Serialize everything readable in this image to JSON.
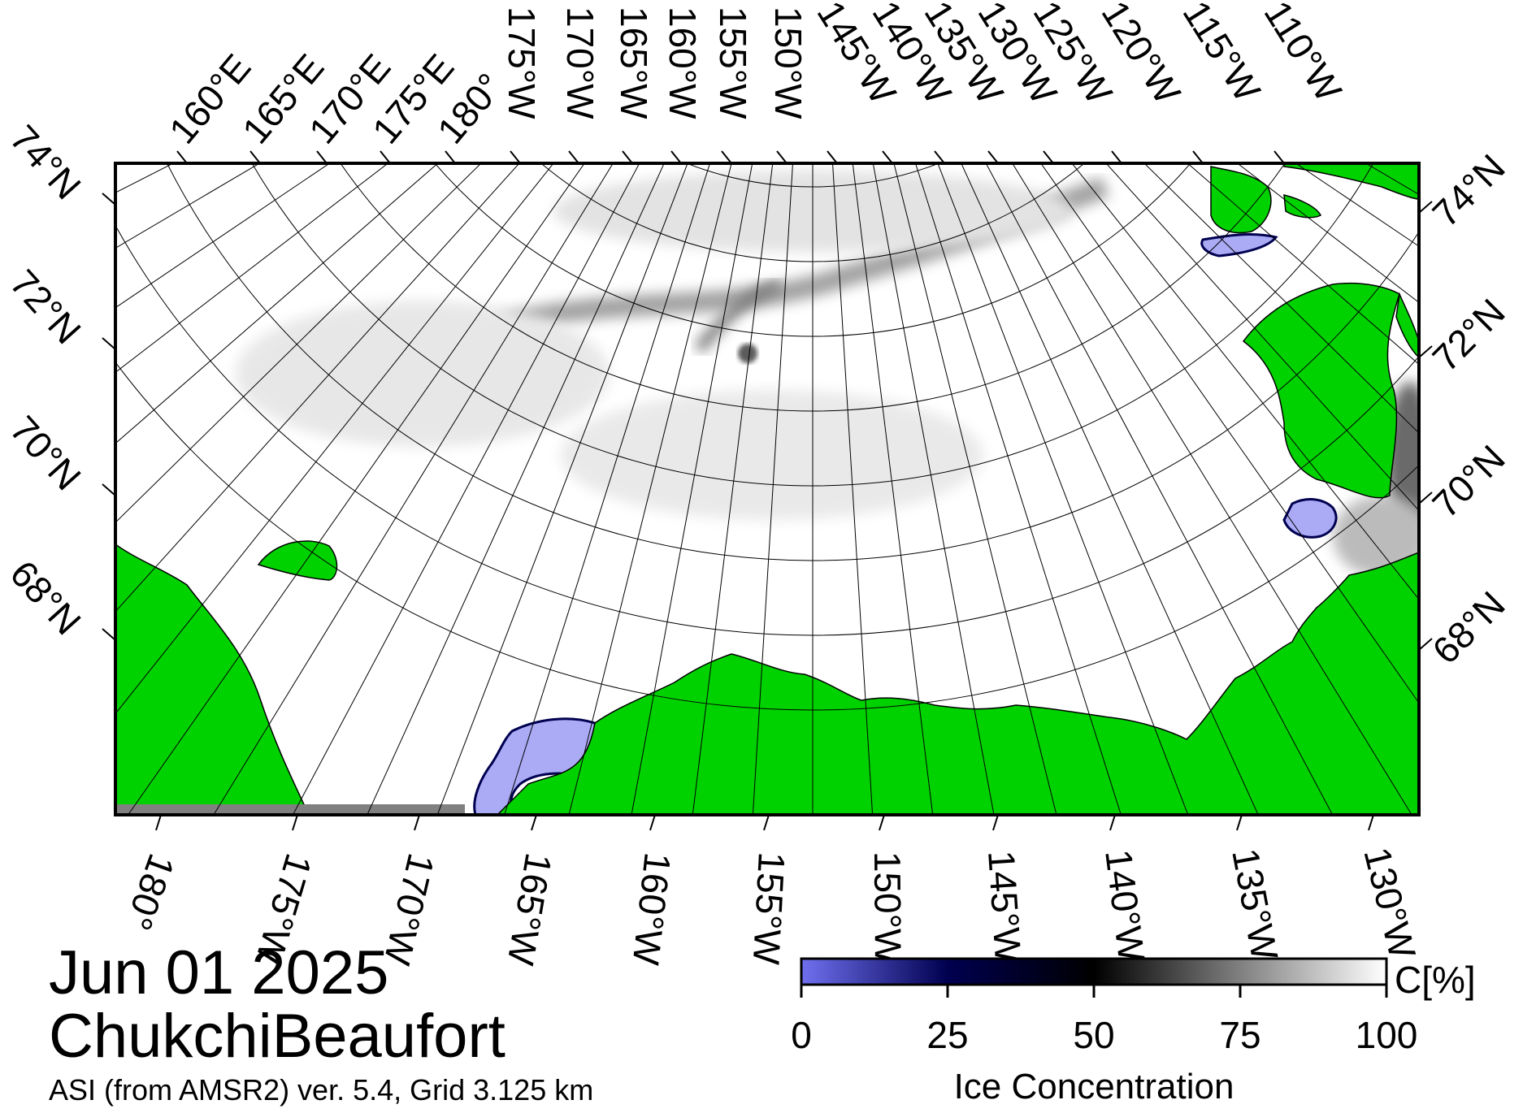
{
  "map": {
    "date": "Jun 01 2025",
    "region": "ChukchiBeaufort",
    "product": "ASI (from AMSR2) ver. 5.4,  Grid 3.125 km",
    "land_color": "#00d200",
    "ocean_color": "#ffffff",
    "no_data_color": "#808080",
    "top_longitude_labels": [
      "160°E",
      "165°E",
      "170°E",
      "175°E",
      "180°",
      "175°W",
      "170°W",
      "165°W",
      "160°W",
      "155°W",
      "150°W",
      "145°W",
      "140°W",
      "135°W",
      "130°W",
      "125°W",
      "120°W",
      "115°W",
      "110°W"
    ],
    "bottom_longitude_labels": [
      "180°",
      "175°W",
      "170°W",
      "165°W",
      "160°W",
      "155°W",
      "150°W",
      "145°W",
      "140°W",
      "135°W",
      "130°W"
    ],
    "left_latitude_labels": [
      "74°N",
      "72°N",
      "70°N",
      "68°N"
    ],
    "right_latitude_labels": [
      "74°N",
      "72°N",
      "70°N",
      "68°N"
    ]
  },
  "colorbar": {
    "title": "Ice Concentration",
    "unit": "C[%]",
    "ticks": [
      "0",
      "25",
      "50",
      "75",
      "100"
    ],
    "colors": [
      "#7070f0",
      "#000050",
      "#000000",
      "#808080",
      "#ffffff"
    ]
  }
}
